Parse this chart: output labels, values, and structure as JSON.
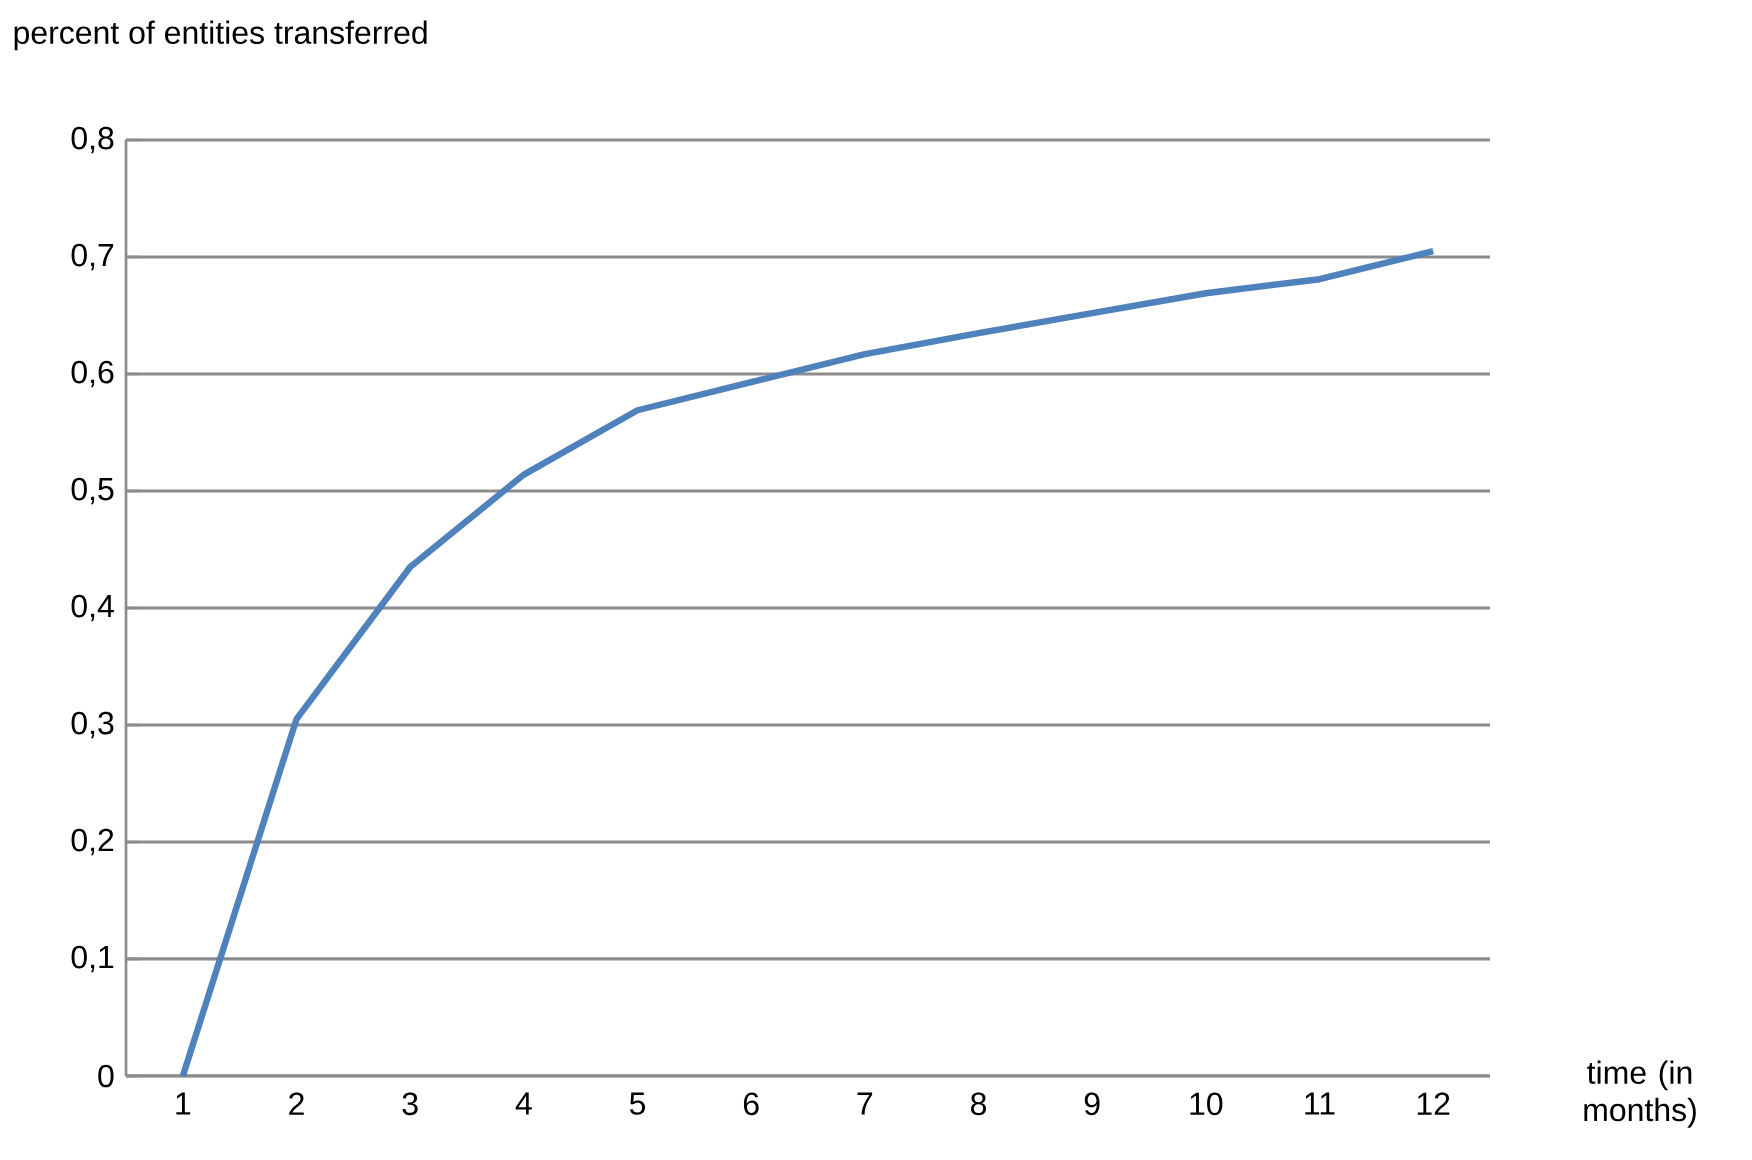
{
  "chart_data": {
    "type": "line",
    "ylabel": "percent of entities transferred",
    "xlabel": "time (in months)",
    "categories": [
      "1",
      "2",
      "3",
      "4",
      "5",
      "6",
      "7",
      "8",
      "9",
      "10",
      "11",
      "12"
    ],
    "series": [
      {
        "color": "#4f81bd",
        "values": [
          0,
          0.305,
          0.435,
          0.514,
          0.569,
          0.593,
          0.617,
          0.635,
          0.652,
          0.669,
          0.681,
          0.705
        ]
      }
    ],
    "ylim": [
      0,
      0.8
    ],
    "yticks": [
      {
        "value": 0,
        "label": "0"
      },
      {
        "value": 0.1,
        "label": "0,1"
      },
      {
        "value": 0.2,
        "label": "0,2"
      },
      {
        "value": 0.3,
        "label": "0,3"
      },
      {
        "value": 0.4,
        "label": "0,4"
      },
      {
        "value": 0.5,
        "label": "0,5"
      },
      {
        "value": 0.6,
        "label": "0,6"
      },
      {
        "value": 0.7,
        "label": "0,7"
      },
      {
        "value": 0.8,
        "label": "0,8"
      }
    ],
    "grid": "y",
    "marker": "none",
    "line_style": "solid"
  }
}
